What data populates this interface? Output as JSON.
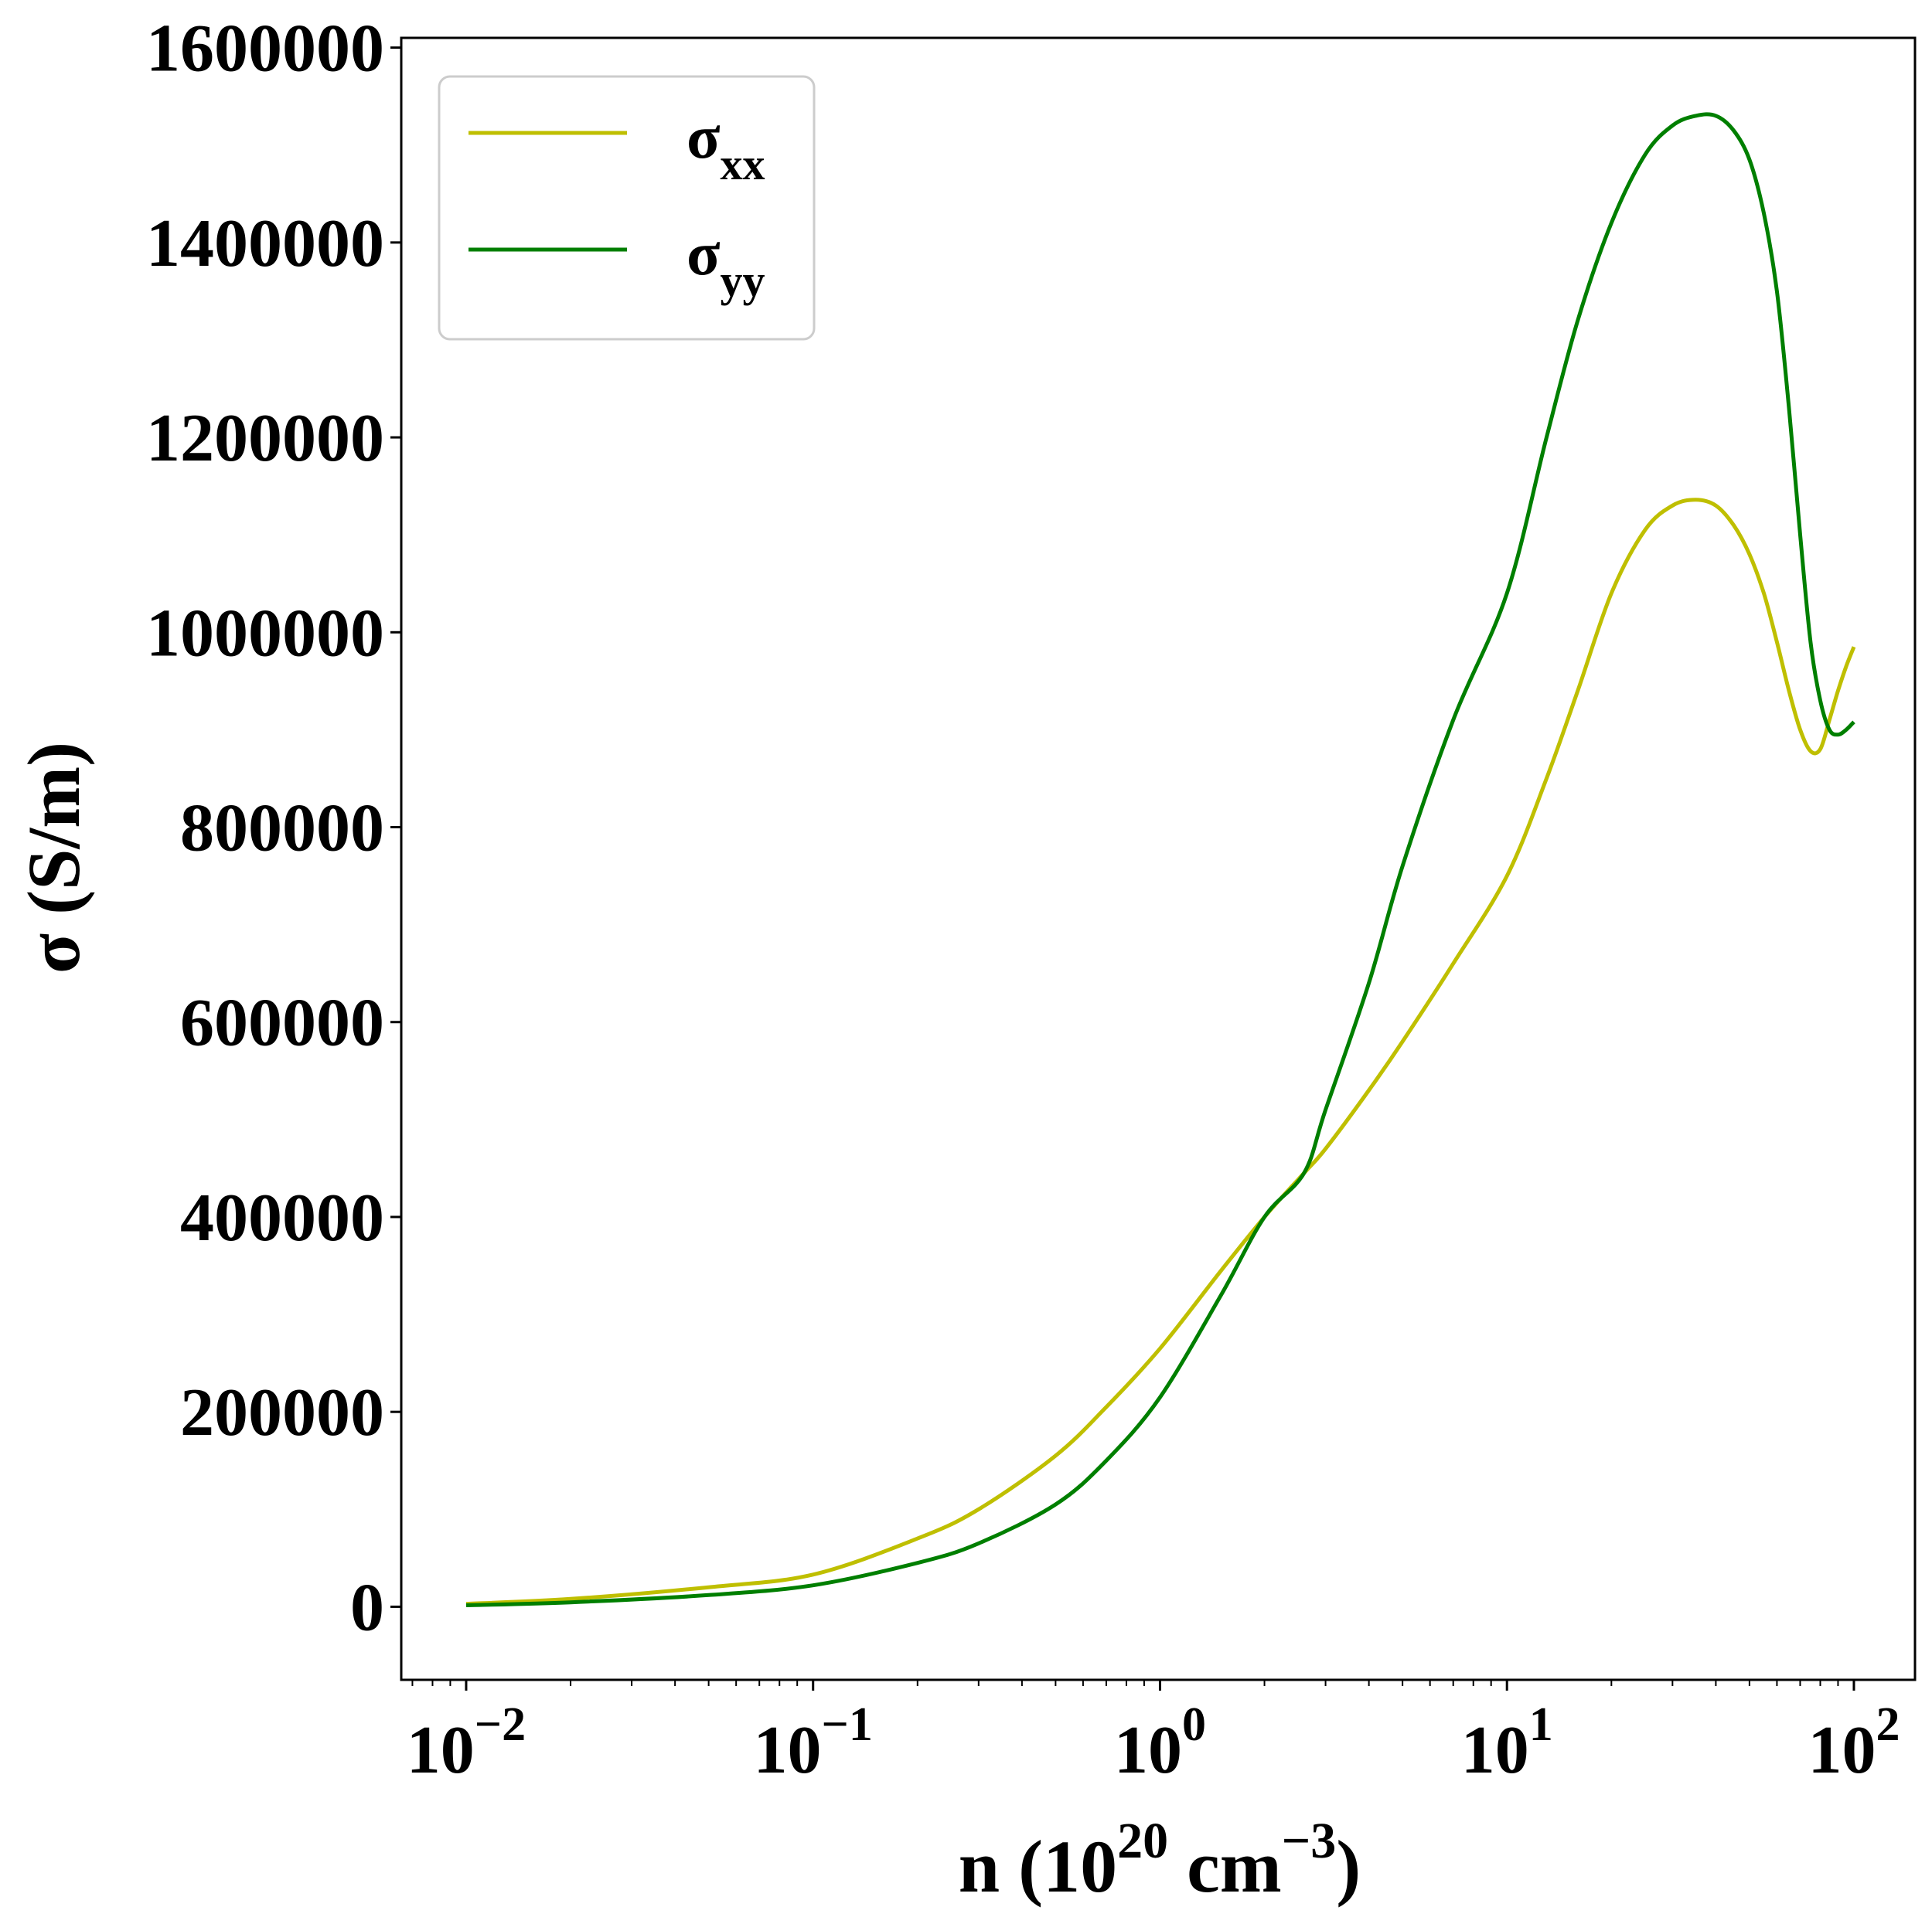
{
  "chart_data": {
    "type": "line",
    "title": "",
    "xlabel": {
      "base": "n (10",
      "sup1": "20",
      "mid": " cm",
      "sup2": "−3",
      "end": ")"
    },
    "ylabel": "σ (S/m)",
    "xscale": "log",
    "xlim": [
      0.0065,
      150
    ],
    "ylim": [
      -75000,
      1610000
    ],
    "grid": false,
    "legend_position": "top-left",
    "x_ticks": [
      {
        "value": 0.01,
        "base": "10",
        "exp": "−2"
      },
      {
        "value": 0.1,
        "base": "10",
        "exp": "−1"
      },
      {
        "value": 1,
        "base": "10",
        "exp": "0"
      },
      {
        "value": 10,
        "base": "10",
        "exp": "1"
      },
      {
        "value": 100,
        "base": "10",
        "exp": "2"
      }
    ],
    "y_ticks": [
      {
        "value": 0,
        "label": "0"
      },
      {
        "value": 200000,
        "label": "200000"
      },
      {
        "value": 400000,
        "label": "400000"
      },
      {
        "value": 600000,
        "label": "600000"
      },
      {
        "value": 800000,
        "label": "800000"
      },
      {
        "value": 1000000,
        "label": "1000000"
      },
      {
        "value": 1200000,
        "label": "1200000"
      },
      {
        "value": 1400000,
        "label": "1400000"
      },
      {
        "value": 1600000,
        "label": "1600000"
      }
    ],
    "series": [
      {
        "name": "σ",
        "subscript": "xx",
        "color": "#bfbf00",
        "x": [
          0.01,
          0.02,
          0.05,
          0.1,
          0.2,
          0.3,
          0.5,
          0.7,
          1.0,
          1.5,
          2.0,
          2.6,
          3.0,
          4.0,
          5.0,
          7.0,
          10,
          13,
          16,
          20,
          25,
          30,
          35,
          40,
          45,
          50,
          55,
          60,
          65,
          70,
          75,
          80,
          85,
          90,
          95,
          100
        ],
        "y": [
          3000,
          8000,
          20000,
          33000,
          70000,
          100000,
          155000,
          205000,
          265000,
          345000,
          400000,
          445000,
          470000,
          530000,
          580000,
          660000,
          750000,
          850000,
          940000,
          1040000,
          1105000,
          1130000,
          1136000,
          1130000,
          1110000,
          1080000,
          1040000,
          990000,
          940000,
          900000,
          878000,
          880000,
          910000,
          940000,
          965000,
          985000
        ]
      },
      {
        "name": "σ",
        "subscript": "yy",
        "color": "#007f00",
        "x": [
          0.01,
          0.02,
          0.05,
          0.1,
          0.2,
          0.3,
          0.5,
          0.7,
          1.0,
          1.5,
          2.0,
          2.6,
          3.0,
          4.0,
          5.0,
          7.0,
          10,
          13,
          16,
          20,
          25,
          30,
          35,
          40,
          45,
          50,
          55,
          60,
          65,
          70,
          75,
          80,
          85,
          90,
          95,
          100
        ],
        "y": [
          1500,
          4500,
          12000,
          22000,
          45000,
          65000,
          105000,
          150000,
          215000,
          320000,
          400000,
          445000,
          510000,
          640000,
          760000,
          910000,
          1040000,
          1200000,
          1320000,
          1420000,
          1490000,
          1520000,
          1530000,
          1530000,
          1515000,
          1485000,
          1430000,
          1350000,
          1230000,
          1100000,
          990000,
          930000,
          900000,
          895000,
          900000,
          908000
        ]
      }
    ]
  }
}
